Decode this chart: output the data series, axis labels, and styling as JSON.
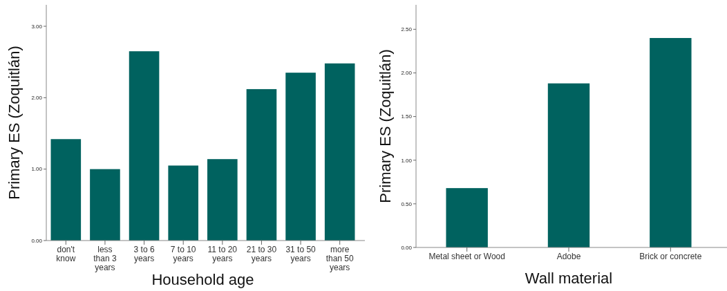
{
  "chart_data": [
    {
      "type": "bar",
      "xlabel": "Household age",
      "ylabel": "Primary ES (Zoquitlán)",
      "categories": [
        "don't know",
        "less than 3 years",
        "3 to 6 years",
        "7 to 10 years",
        "11 to 20 years",
        "21 to 30 years",
        "31 to 50 years",
        "more than 50 years"
      ],
      "values": [
        1.42,
        1.0,
        2.65,
        1.05,
        1.14,
        2.12,
        2.35,
        2.48
      ],
      "color": "#00625f",
      "ylim": [
        0,
        3.3
      ],
      "yticks": [
        {
          "value": 0,
          "label": "0.00"
        },
        {
          "value": 1,
          "label": "1.00"
        },
        {
          "value": 2,
          "label": "2.00"
        },
        {
          "value": 3,
          "label": "3.00"
        }
      ],
      "grid": false
    },
    {
      "type": "bar",
      "xlabel": "Wall material",
      "ylabel": "Primary ES (Zoquitlán)",
      "categories": [
        "Metal sheet or Wood",
        "Adobe",
        "Brick or concrete"
      ],
      "values": [
        0.68,
        1.88,
        2.4
      ],
      "color": "#00625f",
      "ylim": [
        0,
        2.78
      ],
      "yticks": [
        {
          "value": 0,
          "label": "0.00"
        },
        {
          "value": 0.5,
          "label": "0.50"
        },
        {
          "value": 1,
          "label": "1.00"
        },
        {
          "value": 1.5,
          "label": "1.50"
        },
        {
          "value": 2,
          "label": "2.00"
        },
        {
          "value": 2.5,
          "label": "2.50"
        }
      ],
      "grid": false
    }
  ]
}
